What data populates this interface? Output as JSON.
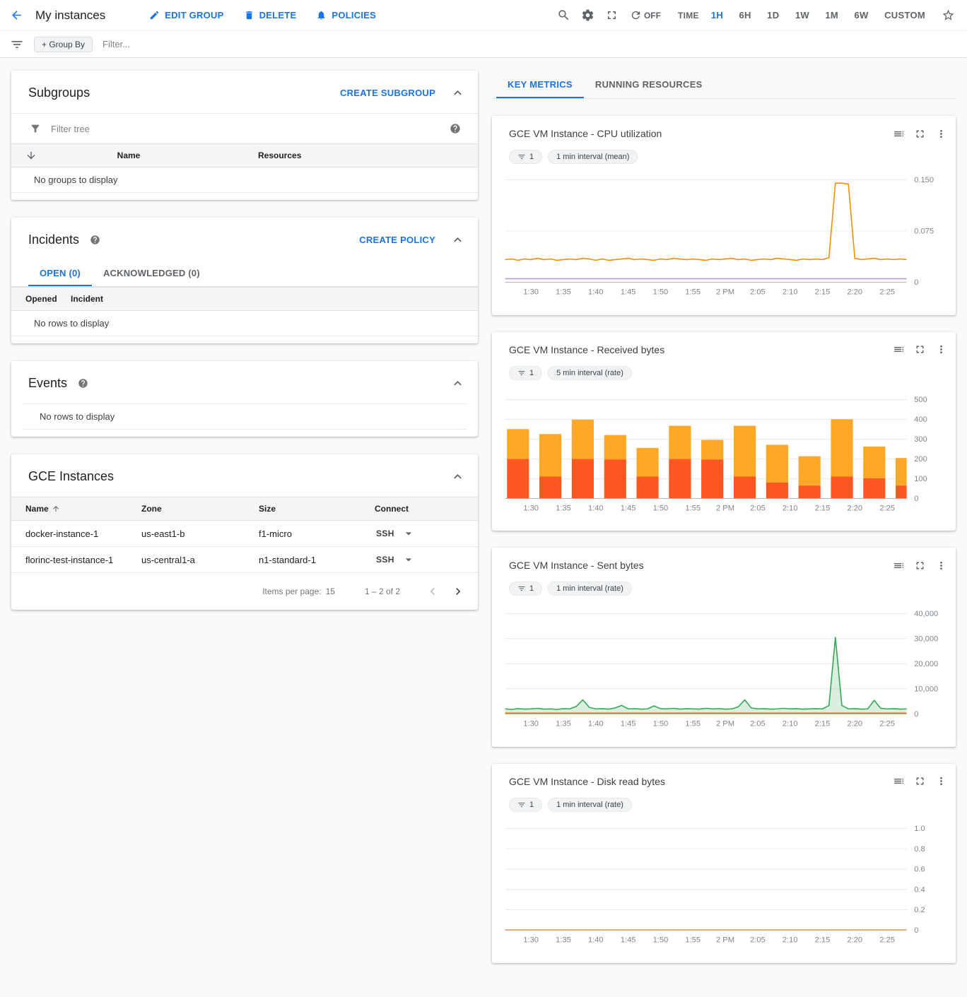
{
  "header": {
    "title": "My instances",
    "actions": [
      {
        "label": "EDIT GROUP",
        "icon": "edit-icon"
      },
      {
        "label": "DELETE",
        "icon": "delete-icon"
      },
      {
        "label": "POLICIES",
        "icon": "policies-bell-icon"
      }
    ],
    "refresh_label": "OFF",
    "time_label": "TIME",
    "ranges": [
      "1H",
      "6H",
      "1D",
      "1W",
      "1M",
      "6W",
      "CUSTOM"
    ],
    "active_range": "1H"
  },
  "filter_bar": {
    "group_by_label": "+ Group By",
    "filter_placeholder": "Filter..."
  },
  "subgroups": {
    "title": "Subgroups",
    "create_label": "CREATE SUBGROUP",
    "filter_placeholder": "Filter tree",
    "columns": [
      "Name",
      "Resources"
    ],
    "empty_text": "No groups to display"
  },
  "incidents": {
    "title": "Incidents",
    "create_label": "CREATE POLICY",
    "tabs": [
      "OPEN (0)",
      "ACKNOWLEDGED (0)"
    ],
    "active_tab": "OPEN (0)",
    "columns": [
      "Opened",
      "Incident"
    ],
    "empty_text": "No rows to display"
  },
  "events": {
    "title": "Events",
    "empty_text": "No rows to display"
  },
  "gce_instances": {
    "title": "GCE Instances",
    "columns": [
      "Name",
      "Zone",
      "Size",
      "Connect"
    ],
    "rows": [
      {
        "name": "docker-instance-1",
        "zone": "us-east1-b",
        "size": "f1-micro",
        "connect": "SSH"
      },
      {
        "name": "florinc-test-instance-1",
        "zone": "us-central1-a",
        "size": "n1-standard-1",
        "connect": "SSH"
      }
    ],
    "items_per_page_label": "Items per page:",
    "items_per_page": "15",
    "range_label": "1 – 2 of 2"
  },
  "metrics": {
    "tabs": [
      "KEY METRICS",
      "RUNNING RESOURCES"
    ],
    "active_tab": "KEY METRICS"
  },
  "icons": {
    "back": "arrow-left",
    "edit": "pencil",
    "delete": "trash",
    "policies": "bell",
    "search": "magnifier",
    "settings": "gear",
    "fullscreen": "expand-corners",
    "refresh": "circular-arrow",
    "favorite": "star-outline",
    "filter": "funnel-lines",
    "help": "question-circle",
    "collapse": "chevron-up",
    "connect-menu": "caret-down",
    "chart-legend": "list-lines",
    "chart-menu": "three-dots-vertical"
  },
  "colors": {
    "accent_blue": "#1a73e8",
    "cpu_line": "#fb8c00",
    "cpu_line_2": "#b39ddb",
    "bar_bottom": "#ff5722",
    "bar_top": "#ffa726",
    "sent_line": "#34a853",
    "flat_line": "#e8710a"
  },
  "chart_data": [
    {
      "type": "line",
      "title": "GCE VM Instance - CPU utilization",
      "filter_chip": "1",
      "interval_chip": "1 min interval (mean)",
      "x_tick_labels": [
        "1:30",
        "1:35",
        "1:40",
        "1:45",
        "1:50",
        "1:55",
        "2 PM",
        "2:05",
        "2:10",
        "2:15",
        "2:20",
        "2:25"
      ],
      "y_ticks": [
        0,
        0.075,
        0.15
      ],
      "y_tick_labels": [
        "0",
        "0.075",
        "0.150"
      ],
      "ylim": [
        0,
        0.158
      ],
      "series": [
        {
          "name": "cpu-utilization",
          "color": "#fb8c00",
          "values": [
            0.033,
            0.034,
            0.032,
            0.034,
            0.033,
            0.035,
            0.033,
            0.034,
            0.032,
            0.033,
            0.034,
            0.033,
            0.035,
            0.034,
            0.032,
            0.034,
            0.032,
            0.033,
            0.034,
            0.035,
            0.033,
            0.034,
            0.033,
            0.032,
            0.034,
            0.033,
            0.035,
            0.034,
            0.033,
            0.034,
            0.033,
            0.032,
            0.034,
            0.033,
            0.034,
            0.035,
            0.033,
            0.034,
            0.032,
            0.033,
            0.034,
            0.033,
            0.035,
            0.034,
            0.033,
            0.032,
            0.034,
            0.033,
            0.034,
            0.033,
            0.036,
            0.145,
            0.145,
            0.144,
            0.035,
            0.033,
            0.034,
            0.035,
            0.033,
            0.034,
            0.033,
            0.034,
            0.033
          ]
        },
        {
          "name": "cpu-utilization-instance-2",
          "color": "#b39ddb",
          "constant": 0.005,
          "n": 63
        }
      ]
    },
    {
      "type": "stacked-bar",
      "title": "GCE VM Instance - Received bytes",
      "filter_chip": "1",
      "interval_chip": "5 min interval (rate)",
      "x_tick_labels": [
        "1:30",
        "1:35",
        "1:40",
        "1:45",
        "1:50",
        "1:55",
        "2 PM",
        "2:05",
        "2:10",
        "2:15",
        "2:20",
        "2:25"
      ],
      "y_ticks": [
        0,
        100,
        200,
        300,
        400,
        500
      ],
      "y_tick_labels": [
        "0",
        "100",
        "200",
        "300",
        "400",
        "500"
      ],
      "ylim": [
        0,
        545
      ],
      "bar_times": [
        "1:27",
        "1:32",
        "1:37",
        "1:42",
        "1:47",
        "1:52",
        "1:57",
        "2:02",
        "2:07",
        "2:12",
        "2:17",
        "2:22",
        "2:27"
      ],
      "colors": {
        "bottom": "#ff5722",
        "top": "#ffa726"
      },
      "bars": {
        "bottom": [
          200,
          110,
          200,
          197,
          110,
          200,
          197,
          110,
          80,
          65,
          110,
          102,
          65
        ],
        "top": [
          150,
          215,
          198,
          123,
          145,
          167,
          99,
          257,
          191,
          148,
          290,
          160,
          139
        ]
      }
    },
    {
      "type": "line",
      "title": "GCE VM Instance - Sent bytes",
      "filter_chip": "1",
      "interval_chip": "1 min interval (rate)",
      "x_tick_labels": [
        "1:30",
        "1:35",
        "1:40",
        "1:45",
        "1:50",
        "1:55",
        "2 PM",
        "2:05",
        "2:10",
        "2:15",
        "2:20",
        "2:25"
      ],
      "y_ticks": [
        0,
        10000,
        20000,
        30000,
        40000
      ],
      "y_tick_labels": [
        "0",
        "10,000",
        "20,000",
        "30,000",
        "40,000"
      ],
      "ylim": [
        0,
        43000
      ],
      "series": [
        {
          "name": "sent-bytes",
          "color": "#34a853",
          "fill": true,
          "fill_opacity": 0.18,
          "values": [
            2000,
            1800,
            2100,
            1900,
            2000,
            2200,
            1900,
            2000,
            1800,
            2100,
            2000,
            3000,
            5600,
            2600,
            2000,
            2100,
            1900,
            2400,
            3400,
            2000,
            2100,
            1900,
            2000,
            3200,
            2100,
            2000,
            2200,
            1900,
            2100,
            2000,
            1900,
            2200,
            2000,
            2100,
            1900,
            2000,
            2800,
            5600,
            2400,
            2000,
            2100,
            1900,
            2000,
            2200,
            2000,
            2100,
            1900,
            2000,
            2100,
            2000,
            3300,
            30500,
            3400,
            2000,
            2100,
            1900,
            2000,
            5400,
            2200,
            2000,
            2100,
            1900,
            2000
          ]
        },
        {
          "name": "sent-bytes-instance-2",
          "color": "#e8710a",
          "constant": 300,
          "n": 63
        }
      ]
    },
    {
      "type": "line",
      "title": "GCE VM Instance - Disk read bytes",
      "filter_chip": "1",
      "interval_chip": "1 min interval (rate)",
      "x_tick_labels": [
        "1:30",
        "1:35",
        "1:40",
        "1:45",
        "1:50",
        "1:55",
        "2 PM",
        "2:05",
        "2:10",
        "2:15",
        "2:20",
        "2:25"
      ],
      "y_ticks": [
        0,
        0.2,
        0.4,
        0.6,
        0.8,
        1.0
      ],
      "y_tick_labels": [
        "0",
        "0.2",
        "0.4",
        "0.6",
        "0.8",
        "1.0"
      ],
      "ylim": [
        0,
        1.06
      ],
      "series": [
        {
          "name": "disk-read-bytes",
          "color": "#e8710a",
          "constant": 0,
          "n": 63
        }
      ]
    }
  ]
}
